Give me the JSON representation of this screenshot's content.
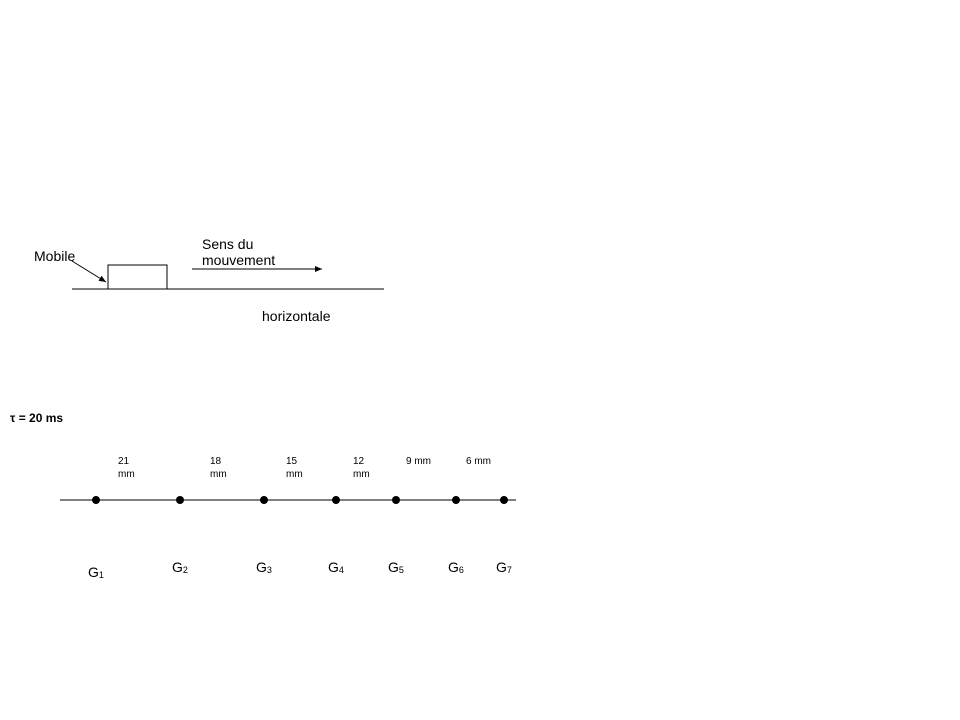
{
  "setup": {
    "mobile_label": "Mobile",
    "direction_label": "Sens du mouvement",
    "ground_label": "horizontale"
  },
  "recording": {
    "interval_label": "τ = 20 ms",
    "distances": [
      "21 mm",
      "18 mm",
      "15 mm",
      "12 mm",
      "9 mm",
      "6 mm"
    ],
    "points": [
      {
        "letter": "G",
        "index": "1"
      },
      {
        "letter": "G",
        "index": "2"
      },
      {
        "letter": "G",
        "index": "3"
      },
      {
        "letter": "G",
        "index": "4"
      },
      {
        "letter": "G",
        "index": "5"
      },
      {
        "letter": "G",
        "index": "6"
      },
      {
        "letter": "G",
        "index": "7"
      }
    ]
  }
}
